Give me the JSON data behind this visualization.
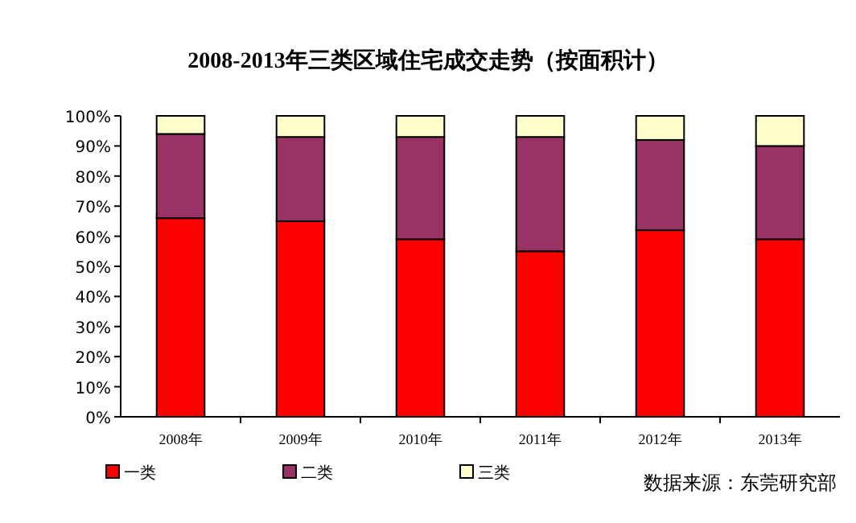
{
  "chart_data": {
    "type": "bar",
    "stacked": true,
    "title": "2008-2013年三类区域住宅成交走势（按面积计）",
    "categories": [
      "2008年",
      "2009年",
      "2010年",
      "2011年",
      "2012年",
      "2013年"
    ],
    "series": [
      {
        "name": "一类",
        "color": "#ff0000",
        "values": [
          66,
          65,
          59,
          55,
          62,
          59
        ]
      },
      {
        "name": "二类",
        "color": "#993366",
        "values": [
          28,
          28,
          34,
          38,
          30,
          31
        ]
      },
      {
        "name": "三类",
        "color": "#ffffcc",
        "values": [
          6,
          7,
          7,
          7,
          8,
          10
        ]
      }
    ],
    "ylim": [
      0,
      100
    ],
    "yticks": [
      {
        "value": 0,
        "label": "0%"
      },
      {
        "value": 10,
        "label": "10%"
      },
      {
        "value": 20,
        "label": "20%"
      },
      {
        "value": 30,
        "label": "30%"
      },
      {
        "value": 40,
        "label": "40%"
      },
      {
        "value": 50,
        "label": "50%"
      },
      {
        "value": 60,
        "label": "60%"
      },
      {
        "value": 70,
        "label": "70%"
      },
      {
        "value": 80,
        "label": "80%"
      },
      {
        "value": 90,
        "label": "90%"
      },
      {
        "value": 100,
        "label": "100%"
      }
    ],
    "legend": "bottom",
    "annotations": [
      "数据来源：东莞研究部"
    ]
  }
}
